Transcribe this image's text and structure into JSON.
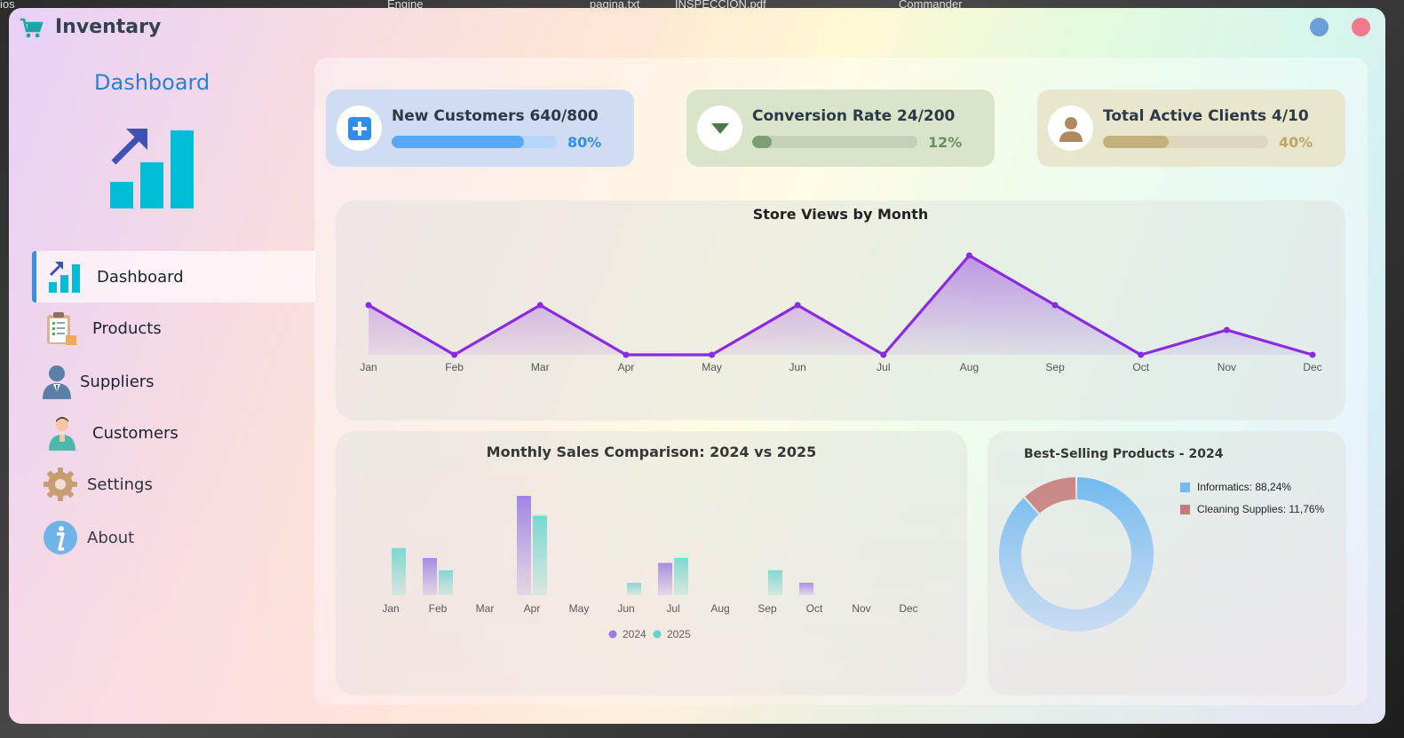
{
  "desktop": {
    "fragments": [
      "ios",
      "Engine",
      "pagina.txt",
      "INSPECCION.pdf",
      "Commander"
    ]
  },
  "titlebar": {
    "title": "Inventary",
    "icon": "shopping-cart-icon"
  },
  "sidebar": {
    "title": "Dashboard",
    "logo_icon": "growth-chart-icon",
    "items": [
      {
        "label": "Dashboard",
        "icon": "growth-chart-icon",
        "active": true
      },
      {
        "label": "Products",
        "icon": "clipboard-icon",
        "active": false
      },
      {
        "label": "Suppliers",
        "icon": "person-icon",
        "active": false
      },
      {
        "label": "Customers",
        "icon": "customer-icon",
        "active": false
      },
      {
        "label": "Settings",
        "icon": "gear-icon",
        "active": false
      },
      {
        "label": "About",
        "icon": "info-icon",
        "active": false
      }
    ]
  },
  "kpis": [
    {
      "title": "New Customers 640/800",
      "percent_label": "80%",
      "progress": 0.8,
      "icon": "plus-icon"
    },
    {
      "title": "Conversion Rate 24/200",
      "percent_label": "12%",
      "progress": 0.12,
      "icon": "caret-down-icon"
    },
    {
      "title": "Total Active Clients 4/10",
      "percent_label": "40%",
      "progress": 0.4,
      "icon": "user-icon"
    }
  ],
  "chart_data": [
    {
      "type": "area",
      "title": "Store Views by Month",
      "categories": [
        "Jan",
        "Feb",
        "Mar",
        "Apr",
        "May",
        "Jun",
        "Jul",
        "Aug",
        "Sep",
        "Oct",
        "Nov",
        "Dec"
      ],
      "values": [
        2,
        0,
        2,
        0,
        0,
        2,
        0,
        4,
        2,
        0,
        1,
        0
      ],
      "ylim": [
        0,
        4
      ],
      "color": "#8a2be2",
      "grid": false
    },
    {
      "type": "bar",
      "title": "Monthly Sales Comparison: 2024 vs 2025",
      "categories": [
        "Jan",
        "Feb",
        "Mar",
        "Apr",
        "May",
        "Jun",
        "Jul",
        "Aug",
        "Sep",
        "Oct",
        "Nov",
        "Dec"
      ],
      "series": [
        {
          "name": "2024",
          "values": [
            0,
            3,
            0,
            8,
            0,
            0,
            2.6,
            0,
            0,
            1,
            0,
            0
          ],
          "color": "#7b5be6"
        },
        {
          "name": "2025",
          "values": [
            3.8,
            2,
            0,
            6.4,
            0,
            1,
            3,
            0,
            2,
            0,
            0,
            0
          ],
          "color": "#2ecfc4"
        }
      ],
      "ylim": [
        0,
        8
      ],
      "legend": "bottom",
      "grid": false
    },
    {
      "type": "pie",
      "title": "Best-Selling Products - 2024",
      "slices": [
        {
          "label": "Informatics: 88,24%",
          "value": 88.24,
          "color": "#6bb8f0"
        },
        {
          "label": "Cleaning Supplies: 11,76%",
          "value": 11.76,
          "color": "#c0706e"
        }
      ],
      "legend": "right"
    }
  ]
}
